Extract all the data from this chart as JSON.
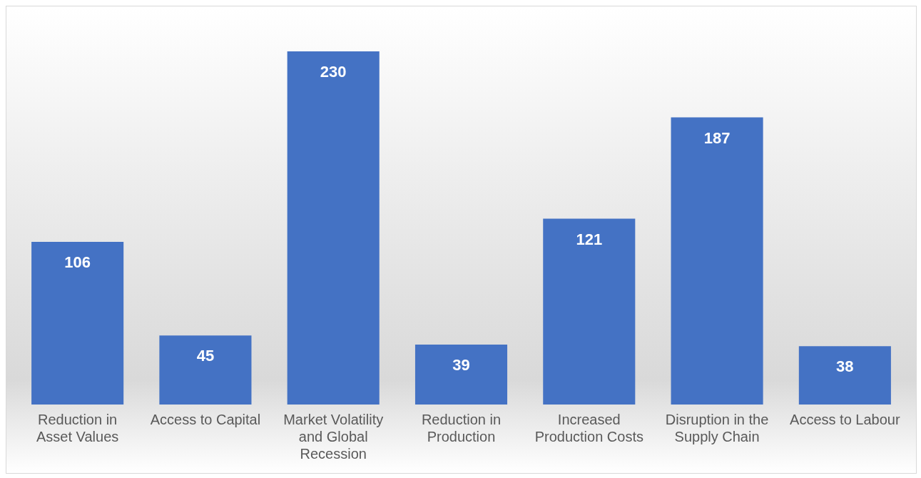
{
  "chart_data": {
    "type": "bar",
    "categories": [
      "Reduction in Asset Values",
      "Access to Capital",
      "Market Volatility and Global Recession",
      "Reduction in Production",
      "Increased Production Costs",
      "Disruption in the Supply Chain",
      "Access to Labour"
    ],
    "values": [
      106,
      45,
      230,
      39,
      121,
      187,
      38
    ],
    "color": "#4472c4",
    "data_labels": true,
    "grid": false,
    "legend": false
  }
}
